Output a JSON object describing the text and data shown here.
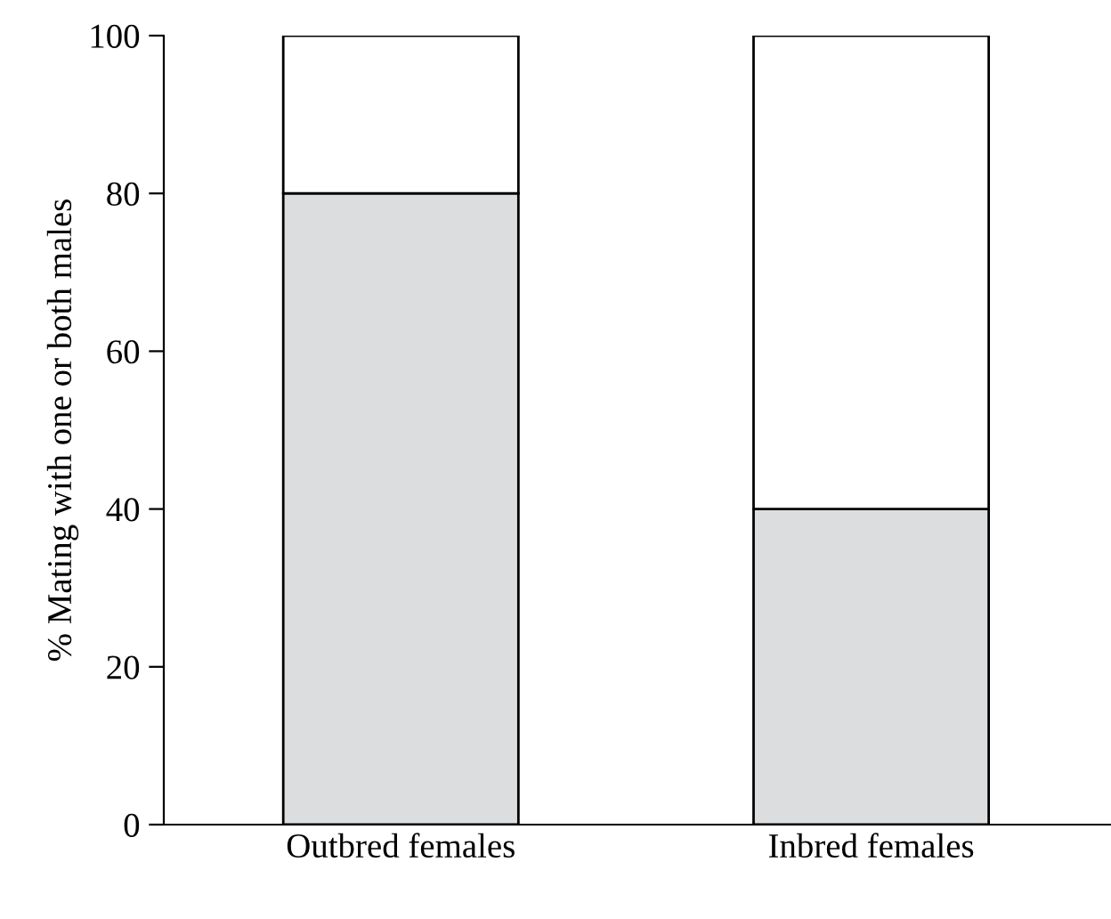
{
  "chart_data": {
    "type": "bar",
    "stacked": true,
    "ylabel": "% Mating with one or both males",
    "categories": [
      "Outbred females",
      "Inbred females"
    ],
    "series": [
      {
        "color": "#dcdddf",
        "values": [
          80,
          40
        ]
      },
      {
        "color": "#ffffff",
        "values": [
          20,
          60
        ]
      }
    ],
    "ylim": [
      0,
      100
    ],
    "yticks": [
      0,
      20,
      40,
      60,
      80,
      100
    ],
    "grid": false,
    "legend": false
  }
}
